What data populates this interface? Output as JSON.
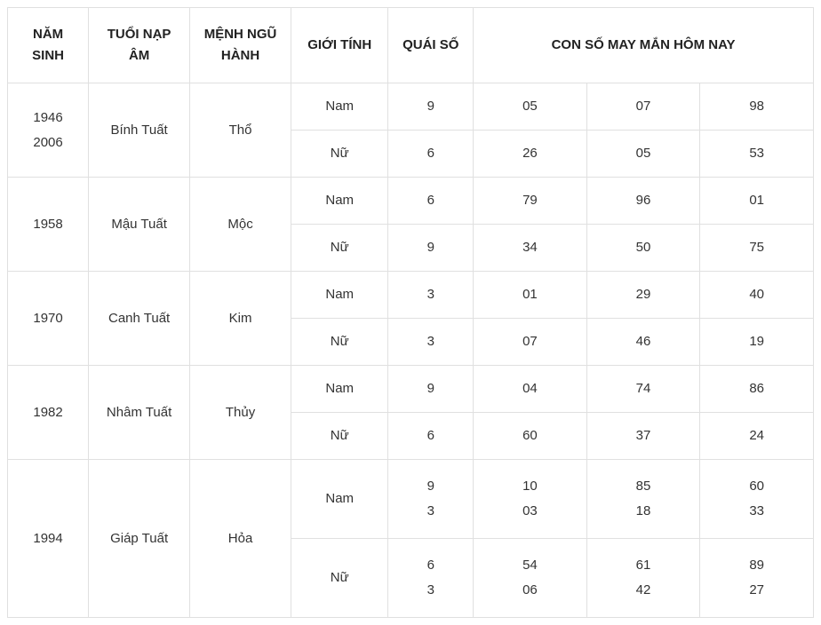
{
  "columns": {
    "year": "NĂM SINH",
    "name": "TUỔI NẠP ÂM",
    "element": "MỆNH NGŨ HÀNH",
    "gender": "GIỚI TÍNH",
    "quai": "QUÁI SỐ",
    "lucky": "CON SỐ MAY MẮN HÔM NAY"
  },
  "groups": [
    {
      "year": [
        "1946",
        "2006"
      ],
      "name": "Bính Tuất",
      "element": "Thổ",
      "rows": [
        {
          "gender": "Nam",
          "quai": [
            "9"
          ],
          "lucky1": [
            "05"
          ],
          "lucky2": [
            "07"
          ],
          "lucky3": [
            "98"
          ]
        },
        {
          "gender": "Nữ",
          "quai": [
            "6"
          ],
          "lucky1": [
            "26"
          ],
          "lucky2": [
            "05"
          ],
          "lucky3": [
            "53"
          ]
        }
      ]
    },
    {
      "year": [
        "1958"
      ],
      "name": "Mậu Tuất",
      "element": "Mộc",
      "rows": [
        {
          "gender": "Nam",
          "quai": [
            "6"
          ],
          "lucky1": [
            "79"
          ],
          "lucky2": [
            "96"
          ],
          "lucky3": [
            "01"
          ]
        },
        {
          "gender": "Nữ",
          "quai": [
            "9"
          ],
          "lucky1": [
            "34"
          ],
          "lucky2": [
            "50"
          ],
          "lucky3": [
            "75"
          ]
        }
      ]
    },
    {
      "year": [
        "1970"
      ],
      "name": "Canh Tuất",
      "element": "Kim",
      "rows": [
        {
          "gender": "Nam",
          "quai": [
            "3"
          ],
          "lucky1": [
            "01"
          ],
          "lucky2": [
            "29"
          ],
          "lucky3": [
            "40"
          ]
        },
        {
          "gender": "Nữ",
          "quai": [
            "3"
          ],
          "lucky1": [
            "07"
          ],
          "lucky2": [
            "46"
          ],
          "lucky3": [
            "19"
          ]
        }
      ]
    },
    {
      "year": [
        "1982"
      ],
      "name": "Nhâm Tuất",
      "element": "Thủy",
      "rows": [
        {
          "gender": "Nam",
          "quai": [
            "9"
          ],
          "lucky1": [
            "04"
          ],
          "lucky2": [
            "74"
          ],
          "lucky3": [
            "86"
          ]
        },
        {
          "gender": "Nữ",
          "quai": [
            "6"
          ],
          "lucky1": [
            "60"
          ],
          "lucky2": [
            "37"
          ],
          "lucky3": [
            "24"
          ]
        }
      ]
    },
    {
      "year": [
        "1994"
      ],
      "name": "Giáp Tuất",
      "element": "Hỏa",
      "rows": [
        {
          "gender": "Nam",
          "quai": [
            "9",
            "3"
          ],
          "lucky1": [
            "10",
            "03"
          ],
          "lucky2": [
            "85",
            "18"
          ],
          "lucky3": [
            "60",
            "33"
          ]
        },
        {
          "gender": "Nữ",
          "quai": [
            "6",
            "3"
          ],
          "lucky1": [
            "54",
            "06"
          ],
          "lucky2": [
            "61",
            "42"
          ],
          "lucky3": [
            "89",
            "27"
          ]
        }
      ]
    }
  ],
  "style": {
    "border_color": "#e0e0e0",
    "text_color": "#333333",
    "header_color": "#222222",
    "background_color": "#ffffff",
    "font_size": 15,
    "header_weight": 700
  }
}
